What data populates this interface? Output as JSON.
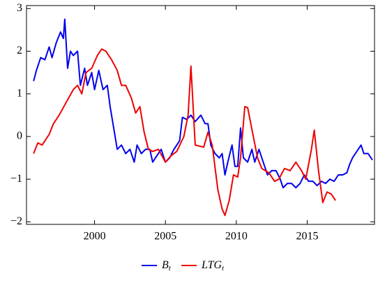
{
  "chart_data": {
    "type": "line",
    "xlim": [
      1995.2,
      2019.75
    ],
    "ylim": [
      -2.06,
      3.07
    ],
    "xticks": [
      2000,
      2005,
      2010,
      2015
    ],
    "yticks": [
      {
        "value": -2,
        "label": "−2"
      },
      {
        "value": -1,
        "label": "−1"
      },
      0,
      1,
      2,
      3
    ],
    "legend": "bottom",
    "series": [
      {
        "name": "B",
        "subscript": "t",
        "color": "#0000ee",
        "x": [
          1995.7,
          1995.9,
          1996.2,
          1996.5,
          1996.8,
          1997.0,
          1997.3,
          1997.6,
          1997.8,
          1997.9,
          1998.1,
          1998.3,
          1998.5,
          1998.8,
          1999.0,
          1999.3,
          1999.5,
          1999.8,
          2000.0,
          2000.3,
          2000.6,
          2000.9,
          2001.1,
          2001.3,
          2001.6,
          2001.9,
          2002.2,
          2002.5,
          2002.8,
          2003.0,
          2003.3,
          2003.6,
          2003.9,
          2004.1,
          2004.4,
          2004.7,
          2005.0,
          2005.3,
          2005.6,
          2006.0,
          2006.2,
          2006.5,
          2006.8,
          2007.1,
          2007.5,
          2007.8,
          2008.0,
          2008.2,
          2008.5,
          2008.8,
          2009.0,
          2009.2,
          2009.4,
          2009.7,
          2009.9,
          2010.1,
          2010.3,
          2010.5,
          2010.8,
          2011.1,
          2011.3,
          2011.6,
          2011.9,
          2012.2,
          2012.5,
          2012.8,
          2013.1,
          2013.3,
          2013.6,
          2013.9,
          2014.2,
          2014.5,
          2014.8,
          2015.1,
          2015.4,
          2015.7,
          2016.0,
          2016.3,
          2016.6,
          2016.9,
          2017.2,
          2017.5,
          2017.8,
          2018.0,
          2018.2,
          2018.5,
          2018.8,
          2019.0,
          2019.3,
          2019.6
        ],
        "values": [
          1.3,
          1.55,
          1.85,
          1.8,
          2.1,
          1.85,
          2.2,
          2.45,
          2.3,
          2.75,
          1.6,
          2.0,
          1.9,
          2.0,
          1.2,
          1.6,
          1.2,
          1.5,
          1.1,
          1.55,
          1.1,
          1.2,
          0.7,
          0.3,
          -0.3,
          -0.2,
          -0.4,
          -0.3,
          -0.6,
          -0.2,
          -0.4,
          -0.3,
          -0.3,
          -0.6,
          -0.45,
          -0.3,
          -0.6,
          -0.5,
          -0.3,
          -0.1,
          0.45,
          0.4,
          0.5,
          0.35,
          0.5,
          0.3,
          0.3,
          -0.2,
          -0.4,
          -0.5,
          -0.4,
          -0.9,
          -0.6,
          -0.2,
          -0.7,
          -0.7,
          0.2,
          -0.5,
          -0.6,
          -0.3,
          -0.6,
          -0.3,
          -0.6,
          -0.9,
          -0.8,
          -0.8,
          -1.0,
          -1.2,
          -1.1,
          -1.1,
          -1.2,
          -1.1,
          -0.9,
          -1.05,
          -1.05,
          -1.15,
          -1.05,
          -1.1,
          -1.0,
          -1.05,
          -0.9,
          -0.9,
          -0.85,
          -0.65,
          -0.5,
          -0.35,
          -0.2,
          -0.4,
          -0.4,
          -0.55
        ]
      },
      {
        "name": "LTG",
        "subscript": "t",
        "color": "#ee0000",
        "x": [
          1995.7,
          1996.0,
          1996.3,
          1996.8,
          1997.1,
          1997.5,
          1998.0,
          1998.5,
          1998.8,
          1999.1,
          1999.4,
          1999.8,
          2000.2,
          2000.5,
          2000.8,
          2001.2,
          2001.6,
          2001.9,
          2002.2,
          2002.6,
          2002.9,
          2003.2,
          2003.5,
          2003.8,
          2004.1,
          2004.5,
          2005.0,
          2005.4,
          2005.8,
          2006.3,
          2006.6,
          2006.8,
          2007.1,
          2007.7,
          2008.0,
          2008.3,
          2008.7,
          2009.0,
          2009.2,
          2009.5,
          2009.8,
          2010.1,
          2010.3,
          2010.6,
          2010.8,
          2011.2,
          2011.5,
          2011.8,
          2012.3,
          2012.7,
          2013.0,
          2013.4,
          2013.8,
          2014.2,
          2014.6,
          2014.9,
          2015.3,
          2015.5,
          2015.8,
          2016.1,
          2016.4,
          2016.7,
          2017.0
        ],
        "values": [
          -0.4,
          -0.15,
          -0.2,
          0.05,
          0.3,
          0.5,
          0.8,
          1.1,
          1.2,
          1.0,
          1.5,
          1.6,
          1.9,
          2.05,
          2.0,
          1.8,
          1.55,
          1.2,
          1.2,
          0.9,
          0.55,
          0.7,
          0.1,
          -0.3,
          -0.35,
          -0.3,
          -0.6,
          -0.45,
          -0.35,
          0.0,
          0.5,
          1.65,
          -0.2,
          -0.25,
          0.1,
          -0.2,
          -1.25,
          -1.7,
          -1.85,
          -1.5,
          -0.9,
          -0.95,
          -0.5,
          0.7,
          0.68,
          0.0,
          -0.5,
          -0.75,
          -0.85,
          -1.05,
          -1.0,
          -0.75,
          -0.8,
          -0.6,
          -0.8,
          -1.0,
          -0.3,
          0.15,
          -0.8,
          -1.55,
          -1.3,
          -1.35,
          -1.5
        ]
      }
    ]
  }
}
